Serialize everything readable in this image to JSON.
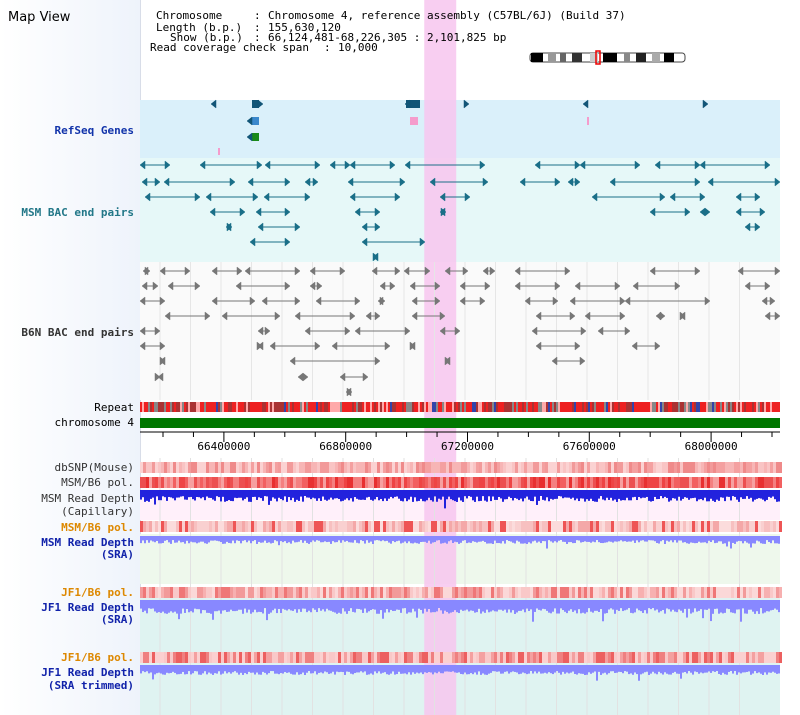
{
  "page": {
    "title": "Map View"
  },
  "info": {
    "chromosome_label": "Chromosome",
    "chromosome_value": "Chromosome 4, reference assembly (C57BL/6J) (Build 37)",
    "length_label": "Length (b.p.)",
    "length_value": "155,630,120",
    "show_label": "Show (b.p.)",
    "show_value": "66,124,481-68,226,305 : 2,101,825 bp",
    "coverage_label": "Read coverage check span",
    "coverage_value": "10,000"
  },
  "tracks": {
    "refseq": "RefSeq Genes",
    "msm_bac": "MSM BAC end pairs",
    "b6n_bac": "B6N BAC end pairs",
    "repeat": "Repeat",
    "chromosome": "chromosome 4",
    "dbsnp": "dbSNP(Mouse)",
    "msm_b6_pol": "MSM/B6 pol.",
    "msm_depth_cap_1": "MSM Read Depth",
    "msm_depth_cap_2": "(Capillary)",
    "msm_b6_pol_2": "MSM/B6 pol.",
    "msm_depth_sra_1": "MSM Read Depth",
    "msm_depth_sra_2": "(SRA)",
    "jf1_b6_pol": "JF1/B6 pol.",
    "jf1_depth_sra_1": "JF1 Read Depth",
    "jf1_depth_sra_2": "(SRA)",
    "jf1_b6_pol_2": "JF1/B6 pol.",
    "jf1_depth_trim_1": "JF1 Read Depth",
    "jf1_depth_trim_2": "(SRA trimmed)"
  },
  "axis": {
    "start": 66124481,
    "end": 68226305,
    "ticks": [
      "66400000",
      "66800000",
      "67200000",
      "67600000",
      "68000000"
    ]
  },
  "highlight": {
    "start": 67058000,
    "end": 67163000
  },
  "colors": {
    "refseq_bg": "#daf0fa",
    "msm_bg": "#e6f8f8",
    "b6n_bg": "#ffffff",
    "highlight": "#f7c6ee",
    "chromosome_bar": "#007700",
    "gene": "#115577",
    "msm_pair": "#1a6f88",
    "b6n_pair": "#777777",
    "depth_capillary": "#2222dd",
    "depth_sra": "#8888ff",
    "pol_red": "#ee2222",
    "lower_bg": "#dff3f1"
  }
}
